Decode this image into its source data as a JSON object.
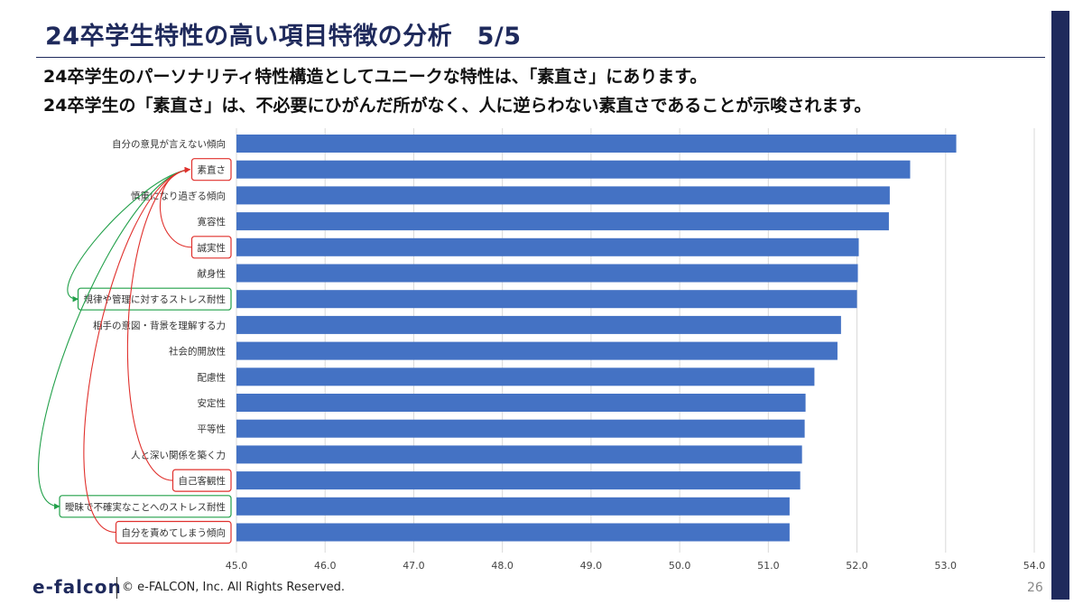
{
  "title": "24卒学生特性の高い項目特徴の分析　5/5",
  "subtitle_lines": [
    "24卒学生のパーソナリティ特性構造としてユニークな特性は、「素直さ」にあります。",
    "24卒学生の「素直さ」は、不必要にひがんだ所がなく、人に逆らわない素直さであることが示唆されます。"
  ],
  "chart_data": {
    "type": "bar",
    "orientation": "horizontal",
    "categories": [
      "自分の意見が言えない傾向",
      "素直さ",
      "慎重になり過ぎる傾向",
      "寛容性",
      "誠実性",
      "献身性",
      "規律や管理に対するストレス耐性",
      "相手の意図・背景を理解する力",
      "社会的開放性",
      "配慮性",
      "安定性",
      "平等性",
      "人と深い関係を築く力",
      "自己客観性",
      "曖昧で不確実なことへのストレス耐性",
      "自分を責めてしまう傾向"
    ],
    "values": [
      53.12,
      52.6,
      52.37,
      52.36,
      52.02,
      52.01,
      52.0,
      51.82,
      51.78,
      51.52,
      51.42,
      51.41,
      51.38,
      51.36,
      51.24,
      51.24
    ],
    "xlim": [
      45.0,
      54.0
    ],
    "x_ticks": [
      "45.0",
      "46.0",
      "47.0",
      "48.0",
      "49.0",
      "50.0",
      "51.0",
      "52.0",
      "53.0",
      "54.0"
    ],
    "grid": true,
    "bar_color": "#4472c4",
    "annotations": {
      "red_boxed": [
        "素直さ",
        "誠実性",
        "自己客観性",
        "自分を責めてしまう傾向"
      ],
      "green_boxed": [
        "規律や管理に対するストレス耐性",
        "曖昧で不確実なことへのストレス耐性"
      ],
      "red_color": "#e0302c",
      "green_color": "#22a04a"
    }
  },
  "footer": {
    "logo": "e-falcon",
    "copyright": "© e-FALCON, Inc. All Rights Reserved.",
    "page_number": "26"
  },
  "colors": {
    "navy": "#1f2a5c"
  }
}
